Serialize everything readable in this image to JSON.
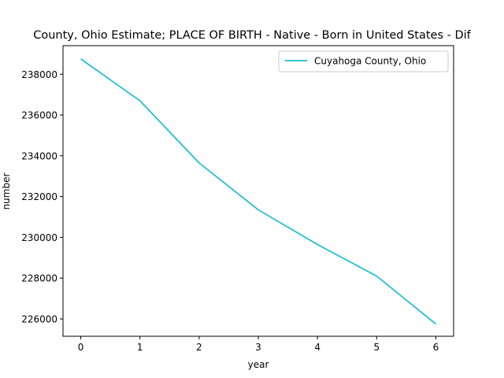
{
  "chart_data": {
    "type": "line",
    "title": "County, Ohio Estimate; PLACE OF BIRTH - Native - Born in United States - Dif",
    "xlabel": "year",
    "ylabel": "number",
    "x": [
      0,
      1,
      2,
      3,
      4,
      5,
      6
    ],
    "x_ticks": [
      "0",
      "1",
      "2",
      "3",
      "4",
      "5",
      "6"
    ],
    "y_ticks": [
      "226000",
      "228000",
      "230000",
      "232000",
      "234000",
      "236000",
      "238000"
    ],
    "xlim": [
      -0.3,
      6.3
    ],
    "ylim": [
      225150,
      239400
    ],
    "grid": false,
    "legend_position": "top-right",
    "series": [
      {
        "name": "Cuyahoga County, Ohio",
        "color": "#17becf",
        "values": [
          238750,
          236700,
          233650,
          231350,
          229650,
          228100,
          225750
        ]
      }
    ]
  }
}
